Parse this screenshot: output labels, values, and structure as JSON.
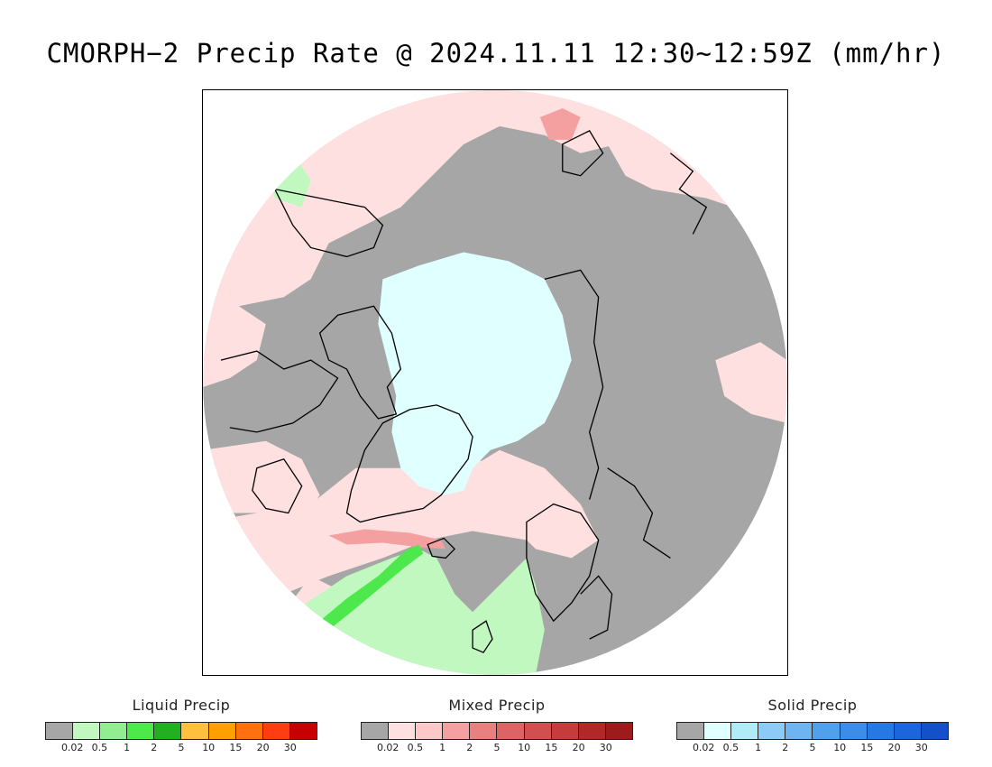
{
  "title": "CMORPH−2 Precip Rate @ 2024.11.11 12:30~12:59Z (mm/hr)",
  "map": {
    "projection": "north-polar-stereographic",
    "colors": {
      "no_precip": "#a6a6a6",
      "liquid_light": "#c0f8c0",
      "liquid_moderate": "#4ce84c",
      "mixed_light": "#ffe0e0",
      "mixed_moderate": "#f4a0a0",
      "solid_light": "#e0ffff",
      "coastline": "#000000"
    }
  },
  "legends": [
    {
      "title": "Liquid Precip",
      "colors": [
        "#a6a6a6",
        "#c0f8c0",
        "#90ee90",
        "#4ce84c",
        "#22b022",
        "#ffc040",
        "#ffa000",
        "#ff7010",
        "#ff3c14",
        "#c80000"
      ],
      "ticks": [
        "0.02",
        "0.5",
        "1",
        "2",
        "5",
        "10",
        "15",
        "20",
        "30"
      ]
    },
    {
      "title": "Mixed Precip",
      "colors": [
        "#a6a6a6",
        "#ffe0e0",
        "#ffc8c8",
        "#f4a0a0",
        "#e88080",
        "#dc6464",
        "#d05050",
        "#c43c3c",
        "#b02828",
        "#9c1c1c"
      ],
      "ticks": [
        "0.02",
        "0.5",
        "1",
        "2",
        "5",
        "10",
        "15",
        "20",
        "30"
      ]
    },
    {
      "title": "Solid Precip",
      "colors": [
        "#a6a6a6",
        "#e0ffff",
        "#b0ecf8",
        "#8ccaf8",
        "#6eb4f0",
        "#50a0ec",
        "#3c8ce8",
        "#2878e4",
        "#1e64dc",
        "#1450c8"
      ],
      "ticks": [
        "0.02",
        "0.5",
        "1",
        "2",
        "5",
        "10",
        "15",
        "20",
        "30"
      ]
    }
  ]
}
